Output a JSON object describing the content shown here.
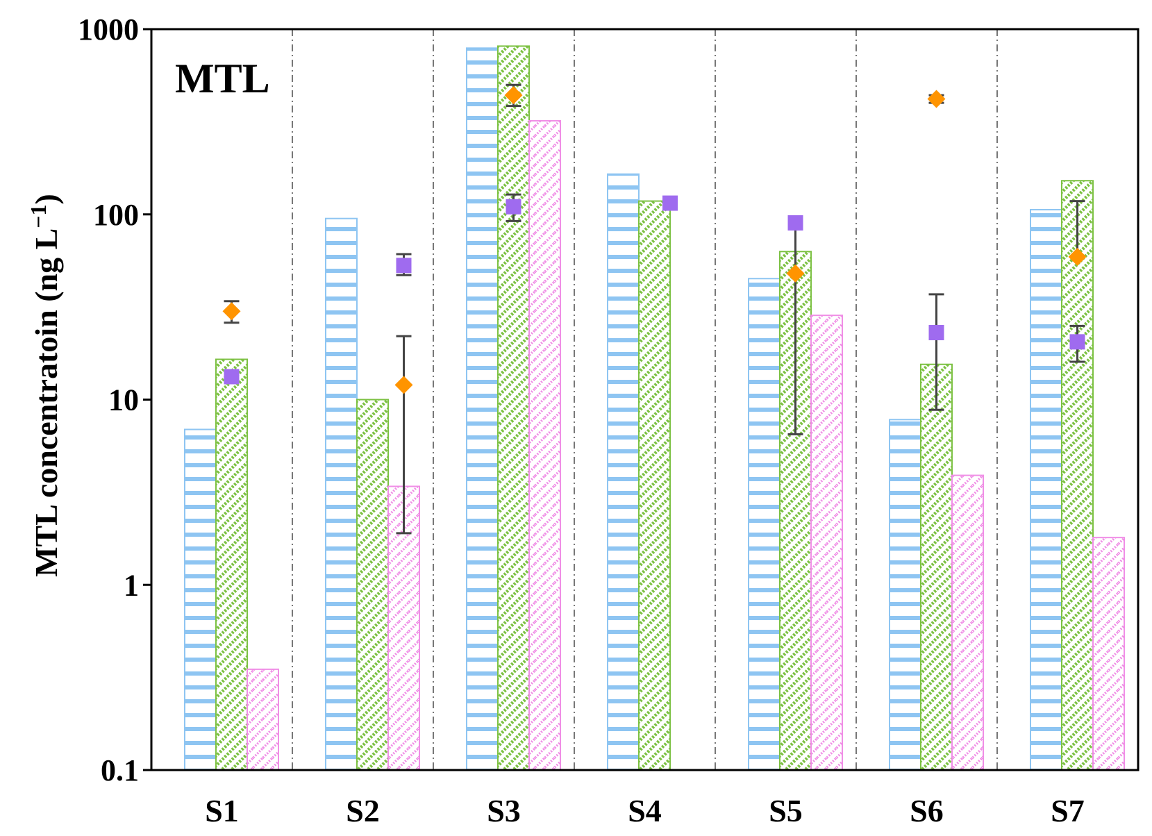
{
  "chart_data": {
    "type": "bar",
    "title": "",
    "panel_label": "MTL",
    "ylabel_main": "MTL concentratoin (ng L",
    "ylabel_sup": "−1",
    "ylabel_close": ")",
    "xlabel": "",
    "yscale": "log",
    "ylim": [
      0.1,
      1000
    ],
    "yticks": [
      0.1,
      1,
      10,
      100,
      1000
    ],
    "ytick_labels": [
      "0.1",
      "1",
      "10",
      "100",
      "1000"
    ],
    "categories": [
      "S1",
      "S2",
      "S3",
      "S4",
      "S5",
      "S6",
      "S7"
    ],
    "series": [
      {
        "name": "series-1",
        "pattern": "horizontal-stripes",
        "color": "#8EC5F2",
        "values": [
          6.9,
          95,
          790,
          165,
          45,
          7.8,
          106
        ]
      },
      {
        "name": "series-2",
        "pattern": "diagonal-hatch",
        "color": "#7CC142",
        "values": [
          16.5,
          10,
          810,
          118,
          63,
          15.5,
          152
        ]
      },
      {
        "name": "series-3",
        "pattern": "diagonal-dots",
        "color": "#F08EE6",
        "values": [
          0.35,
          3.4,
          320,
          null,
          28.5,
          3.9,
          1.8
        ]
      }
    ],
    "markers": [
      {
        "name": "diamond-points",
        "shape": "diamond",
        "color": "#FF9400",
        "points": [
          {
            "category": "S1",
            "slot": 1,
            "value": 30,
            "err_low": 26,
            "err_high": 34
          },
          {
            "category": "S2",
            "slot": 2,
            "value": 12,
            "err_low": 1.9,
            "err_high": 22
          },
          {
            "category": "S3",
            "slot": 1,
            "value": 440,
            "err_low": 385,
            "err_high": 500
          },
          {
            "category": "S5",
            "slot": 1,
            "value": 48,
            "err_low": 6.5,
            "err_high": 90
          },
          {
            "category": "S6",
            "slot": 1,
            "value": 420,
            "err_low": 400,
            "err_high": 440
          },
          {
            "category": "S7",
            "slot": 1,
            "value": 59,
            "err_low": 59,
            "err_high": 118
          }
        ]
      },
      {
        "name": "square-points",
        "shape": "square",
        "color": "#9F6BEF",
        "points": [
          {
            "category": "S1",
            "slot": 1,
            "value": 13.3,
            "err_low": 12.8,
            "err_high": 13.8
          },
          {
            "category": "S2",
            "slot": 2,
            "value": 53,
            "err_low": 47,
            "err_high": 61
          },
          {
            "category": "S3",
            "slot": 1,
            "value": 110,
            "err_low": 92,
            "err_high": 128
          },
          {
            "category": "S4",
            "slot": 1.5,
            "value": 115,
            "err_low": 112,
            "err_high": 118
          },
          {
            "category": "S5",
            "slot": 1,
            "value": 90,
            "err_low": 90,
            "err_high": 90
          },
          {
            "category": "S6",
            "slot": 1,
            "value": 23,
            "err_low": 8.8,
            "err_high": 37
          },
          {
            "category": "S7",
            "slot": 1,
            "value": 20.5,
            "err_low": 16,
            "err_high": 25
          }
        ]
      }
    ],
    "separators": "dash-dot",
    "legend": "none"
  }
}
